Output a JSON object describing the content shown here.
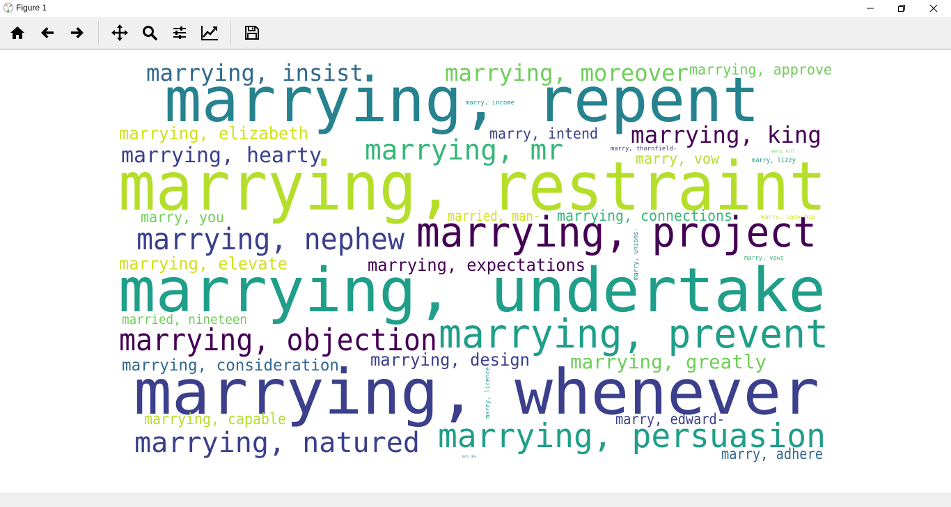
{
  "window": {
    "title": "Figure 1",
    "status": ""
  },
  "toolbar": {
    "items": [
      {
        "name": "home",
        "icon": "home-icon"
      },
      {
        "name": "back",
        "icon": "arrow-left-icon"
      },
      {
        "name": "forward",
        "icon": "arrow-right-icon"
      },
      {
        "name": "pan",
        "icon": "move-icon"
      },
      {
        "name": "zoom",
        "icon": "magnifier-icon"
      },
      {
        "name": "configure-subplots",
        "icon": "sliders-icon"
      },
      {
        "name": "edit-axis",
        "icon": "line-chart-icon"
      },
      {
        "name": "save",
        "icon": "floppy-disk-icon"
      }
    ]
  },
  "palette": {
    "dark_purple": "#440154",
    "indigo": "#3b3f8c",
    "slate_blue": "#31688e",
    "teal_blue": "#26828e",
    "teal": "#1f9e89",
    "green_teal": "#35b779",
    "green": "#6ece58",
    "lime": "#b5de2b",
    "yellow_green": "#d0e11c",
    "yellow": "#e5e419"
  },
  "words": [
    {
      "text": "marrying, insist",
      "color": "#31688e"
    },
    {
      "text": "marrying, moreover",
      "color": "#6ece58"
    },
    {
      "text": "marrying, approve",
      "color": "#6ece58"
    },
    {
      "text": "marrying, repent",
      "color": "#26828e"
    },
    {
      "text": "marry, income",
      "color": "#1f9e89"
    },
    {
      "text": "marrying, elizabeth",
      "color": "#d0e11c"
    },
    {
      "text": "marry, intend",
      "color": "#3b3f8c"
    },
    {
      "text": "marrying, king",
      "color": "#440154"
    },
    {
      "text": "marrying, hearty",
      "color": "#3b3f8c"
    },
    {
      "text": "marrying, mr",
      "color": "#35b779"
    },
    {
      "text": "marry, thornfield-",
      "color": "#3b3f8c"
    },
    {
      "text": "marry, will",
      "color": "#6ece58"
    },
    {
      "text": "marry, vow",
      "color": "#b5de2b"
    },
    {
      "text": "marry, lizzy",
      "color": "#1f9e89"
    },
    {
      "text": "marrying, restraint",
      "color": "#b5de2b"
    },
    {
      "text": "marry, you",
      "color": "#6ece58"
    },
    {
      "text": "married, man-",
      "color": "#d0e11c"
    },
    {
      "text": "marrying, connections",
      "color": "#35b779"
    },
    {
      "text": "marry, ladyship",
      "color": "#d0e11c"
    },
    {
      "text": "marrying, nephew",
      "color": "#3b3f8c"
    },
    {
      "text": "marrying, project",
      "color": "#440154"
    },
    {
      "text": "marry, unions-",
      "color": "#26828e"
    },
    {
      "text": "marry, vows",
      "color": "#35b779"
    },
    {
      "text": "marrying, elevate",
      "color": "#d0e11c"
    },
    {
      "text": "marrying, expectations",
      "color": "#440154"
    },
    {
      "text": "marrying, undertake",
      "color": "#1f9e89"
    },
    {
      "text": "married, nineteen",
      "color": "#6ece58"
    },
    {
      "text": "marrying, objection",
      "color": "#440154"
    },
    {
      "text": "marrying, prevent",
      "color": "#1f9e89"
    },
    {
      "text": "marrying, consideration",
      "color": "#31688e"
    },
    {
      "text": "marrying, design",
      "color": "#3b3f8c"
    },
    {
      "text": "marrying, greatly",
      "color": "#6ece58"
    },
    {
      "text": "marry, licence",
      "color": "#1f9e89"
    },
    {
      "text": "marrying, whenever",
      "color": "#3b3f8c"
    },
    {
      "text": "marrying, capable",
      "color": "#b5de2b"
    },
    {
      "text": "marry, edward-",
      "color": "#3b3f8c"
    },
    {
      "text": "marrying, natured",
      "color": "#3b3f8c"
    },
    {
      "text": "marrying, persuasion",
      "color": "#1f9e89"
    },
    {
      "text": "marry, done",
      "color": "#26828e"
    },
    {
      "text": "marry, adhere",
      "color": "#31688e"
    }
  ]
}
